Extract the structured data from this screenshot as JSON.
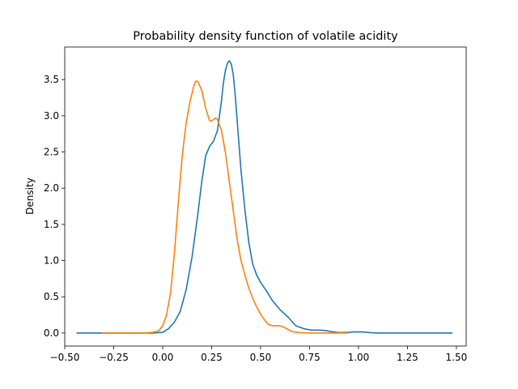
{
  "chart_data": {
    "type": "line",
    "title": "Probability density function of volatile acidity",
    "xlabel": "",
    "ylabel": "Density",
    "xlim": [
      -0.5,
      1.55
    ],
    "ylim": [
      -0.18,
      3.95
    ],
    "xticks": [
      -0.5,
      -0.25,
      0.0,
      0.25,
      0.5,
      0.75,
      1.0,
      1.25,
      1.5
    ],
    "xtick_labels": [
      "−0.50",
      "−0.25",
      "0.00",
      "0.25",
      "0.50",
      "0.75",
      "1.00",
      "1.25",
      "1.50"
    ],
    "yticks": [
      0.0,
      0.5,
      1.0,
      1.5,
      2.0,
      2.5,
      3.0,
      3.5
    ],
    "ytick_labels": [
      "0.0",
      "0.5",
      "1.0",
      "1.5",
      "2.0",
      "2.5",
      "3.0",
      "3.5"
    ],
    "grid": false,
    "series": [
      {
        "color": "#1f77b4",
        "points": [
          [
            -0.44,
            0.0
          ],
          [
            -0.2,
            0.0
          ],
          [
            -0.05,
            0.0
          ],
          [
            0.0,
            0.01
          ],
          [
            0.03,
            0.06
          ],
          [
            0.06,
            0.15
          ],
          [
            0.09,
            0.3
          ],
          [
            0.12,
            0.6
          ],
          [
            0.15,
            1.05
          ],
          [
            0.18,
            1.65
          ],
          [
            0.2,
            2.1
          ],
          [
            0.22,
            2.45
          ],
          [
            0.24,
            2.58
          ],
          [
            0.26,
            2.65
          ],
          [
            0.28,
            2.8
          ],
          [
            0.3,
            3.2
          ],
          [
            0.31,
            3.45
          ],
          [
            0.32,
            3.62
          ],
          [
            0.33,
            3.72
          ],
          [
            0.34,
            3.76
          ],
          [
            0.35,
            3.72
          ],
          [
            0.36,
            3.58
          ],
          [
            0.37,
            3.3
          ],
          [
            0.38,
            2.95
          ],
          [
            0.4,
            2.25
          ],
          [
            0.42,
            1.7
          ],
          [
            0.44,
            1.25
          ],
          [
            0.46,
            0.95
          ],
          [
            0.48,
            0.8
          ],
          [
            0.5,
            0.7
          ],
          [
            0.53,
            0.58
          ],
          [
            0.56,
            0.45
          ],
          [
            0.6,
            0.32
          ],
          [
            0.64,
            0.22
          ],
          [
            0.68,
            0.1
          ],
          [
            0.72,
            0.06
          ],
          [
            0.76,
            0.04
          ],
          [
            0.8,
            0.04
          ],
          [
            0.83,
            0.035
          ],
          [
            0.86,
            0.02
          ],
          [
            0.9,
            0.005
          ],
          [
            0.95,
            0.01
          ],
          [
            0.98,
            0.015
          ],
          [
            1.02,
            0.015
          ],
          [
            1.06,
            0.005
          ],
          [
            1.1,
            0.0
          ],
          [
            1.3,
            0.0
          ],
          [
            1.48,
            0.0
          ]
        ]
      },
      {
        "color": "#ff7f0e",
        "points": [
          [
            -0.31,
            0.0
          ],
          [
            -0.1,
            0.0
          ],
          [
            -0.05,
            0.01
          ],
          [
            -0.02,
            0.03
          ],
          [
            0.0,
            0.1
          ],
          [
            0.02,
            0.25
          ],
          [
            0.04,
            0.55
          ],
          [
            0.06,
            1.1
          ],
          [
            0.08,
            1.8
          ],
          [
            0.1,
            2.45
          ],
          [
            0.12,
            2.9
          ],
          [
            0.14,
            3.2
          ],
          [
            0.16,
            3.42
          ],
          [
            0.17,
            3.48
          ],
          [
            0.18,
            3.47
          ],
          [
            0.2,
            3.35
          ],
          [
            0.22,
            3.1
          ],
          [
            0.24,
            2.93
          ],
          [
            0.25,
            2.93
          ],
          [
            0.26,
            2.95
          ],
          [
            0.27,
            2.97
          ],
          [
            0.28,
            2.95
          ],
          [
            0.3,
            2.8
          ],
          [
            0.32,
            2.5
          ],
          [
            0.34,
            2.1
          ],
          [
            0.36,
            1.7
          ],
          [
            0.38,
            1.3
          ],
          [
            0.4,
            1.0
          ],
          [
            0.42,
            0.8
          ],
          [
            0.44,
            0.62
          ],
          [
            0.46,
            0.48
          ],
          [
            0.48,
            0.36
          ],
          [
            0.5,
            0.26
          ],
          [
            0.52,
            0.18
          ],
          [
            0.54,
            0.12
          ],
          [
            0.56,
            0.1
          ],
          [
            0.6,
            0.1
          ],
          [
            0.62,
            0.08
          ],
          [
            0.64,
            0.05
          ],
          [
            0.66,
            0.02
          ],
          [
            0.7,
            0.005
          ],
          [
            0.75,
            0.0
          ],
          [
            0.95,
            0.0
          ]
        ]
      }
    ]
  }
}
